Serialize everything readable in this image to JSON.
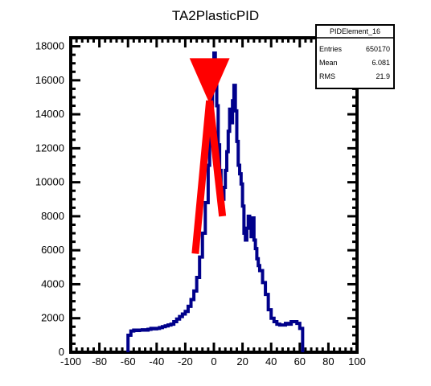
{
  "chart_data": {
    "type": "line",
    "title": "TA2PlasticPID",
    "xlabel": "",
    "ylabel": "",
    "xlim": [
      -100,
      100
    ],
    "ylim": [
      0,
      18500
    ],
    "x_ticks": [
      -100,
      -80,
      -60,
      -40,
      -20,
      0,
      20,
      40,
      60,
      80,
      100
    ],
    "x_tick_labels": [
      "-100",
      "-80",
      "-60",
      "-40",
      "-20",
      "0",
      "20",
      "40",
      "60",
      "80",
      "100"
    ],
    "y_ticks": [
      0,
      2000,
      4000,
      6000,
      8000,
      10000,
      12000,
      14000,
      16000,
      18000
    ],
    "y_tick_labels": [
      "0",
      "2000",
      "4000",
      "6000",
      "8000",
      "10000",
      "12000",
      "14000",
      "16000",
      "18000"
    ],
    "series": [
      {
        "color": "#00008b",
        "style": "step",
        "x": [
          -60,
          -58,
          -56,
          -54,
          -52,
          -50,
          -48,
          -46,
          -44,
          -42,
          -40,
          -38,
          -36,
          -34,
          -32,
          -30,
          -28,
          -26,
          -24,
          -22,
          -20,
          -18,
          -16,
          -14,
          -12,
          -10,
          -8,
          -6,
          -4,
          -3,
          -2,
          -1,
          0,
          1,
          2,
          3,
          4,
          5,
          6,
          7,
          8,
          9,
          10,
          11,
          12,
          13,
          14,
          15,
          16,
          17,
          18,
          19,
          20,
          21,
          22,
          23,
          24,
          25,
          26,
          27,
          28,
          29,
          30,
          31,
          32,
          34,
          36,
          38,
          40,
          42,
          44,
          46,
          48,
          50,
          52,
          54,
          56,
          58,
          60,
          62
        ],
        "y": [
          1000,
          1250,
          1300,
          1280,
          1300,
          1320,
          1300,
          1350,
          1400,
          1380,
          1400,
          1450,
          1500,
          1550,
          1600,
          1650,
          1800,
          1950,
          2100,
          2250,
          2400,
          2700,
          3100,
          3600,
          4400,
          5600,
          7000,
          8800,
          11000,
          12800,
          14500,
          16800,
          17600,
          16500,
          14500,
          12200,
          10700,
          9500,
          9000,
          9700,
          10700,
          11800,
          13000,
          14300,
          13500,
          14800,
          15700,
          14200,
          12400,
          11000,
          10500,
          9900,
          8600,
          7000,
          6600,
          7300,
          8000,
          7300,
          6800,
          7900,
          6600,
          6100,
          5500,
          5100,
          4800,
          4100,
          3400,
          2500,
          2000,
          1800,
          1650,
          1600,
          1600,
          1700,
          1650,
          1800,
          1800,
          1700,
          1400,
          0
        ]
      }
    ],
    "annotations": [
      {
        "type": "arrow",
        "color": "#ff0000",
        "tip": [
          -3,
          14800
        ],
        "tail_left": [
          -13,
          5800
        ],
        "tail_right": [
          6,
          8000
        ],
        "head_width_x": [
          -17,
          11
        ],
        "head_top_y": 17300,
        "head_bottom_y": 15000
      }
    ],
    "stats_box": {
      "name": "PIDElement_16",
      "rows": [
        {
          "label": "Entries",
          "value": "650170"
        },
        {
          "label": "Mean",
          "value": "6.081"
        },
        {
          "label": "RMS",
          "value": "21.9"
        }
      ]
    },
    "grid": false,
    "legend": "none"
  }
}
